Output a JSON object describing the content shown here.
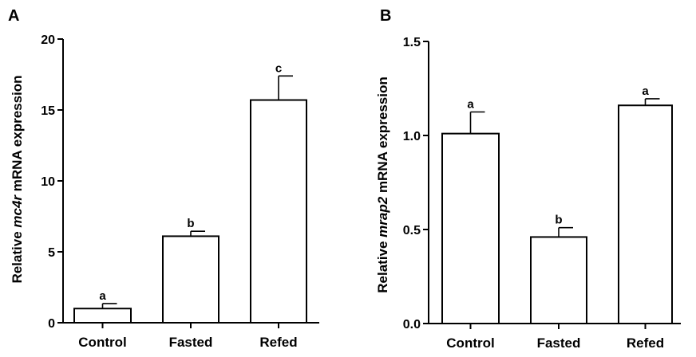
{
  "chart_data": [
    {
      "panel_label": "A",
      "type": "bar",
      "categories": [
        "Control",
        "Fasted",
        "Refed"
      ],
      "values": [
        1.0,
        6.1,
        15.7
      ],
      "errors": [
        0.35,
        0.35,
        1.7
      ],
      "significance": [
        "a",
        "b",
        "c"
      ],
      "ylabel_prefix": "Relative ",
      "ylabel_gene": "mc4r",
      "ylabel_suffix": " mRNA expression",
      "ylim": [
        0,
        20
      ],
      "yticks": [
        0,
        5,
        10,
        15,
        20
      ],
      "ytick_labels": [
        "0",
        "5",
        "10",
        "15",
        "20"
      ]
    },
    {
      "panel_label": "B",
      "type": "bar",
      "categories": [
        "Control",
        "Fasted",
        "Refed"
      ],
      "values": [
        1.01,
        0.46,
        1.16
      ],
      "errors": [
        0.115,
        0.05,
        0.035
      ],
      "significance": [
        "a",
        "b",
        "a"
      ],
      "ylabel_prefix": "Relative ",
      "ylabel_gene": "mrap2",
      "ylabel_suffix": " mRNA expression",
      "ylim": [
        0,
        1.5
      ],
      "yticks": [
        0,
        0.5,
        1.0,
        1.5
      ],
      "ytick_labels": [
        "0.0",
        "0.5",
        "1.0",
        "1.5"
      ]
    }
  ]
}
